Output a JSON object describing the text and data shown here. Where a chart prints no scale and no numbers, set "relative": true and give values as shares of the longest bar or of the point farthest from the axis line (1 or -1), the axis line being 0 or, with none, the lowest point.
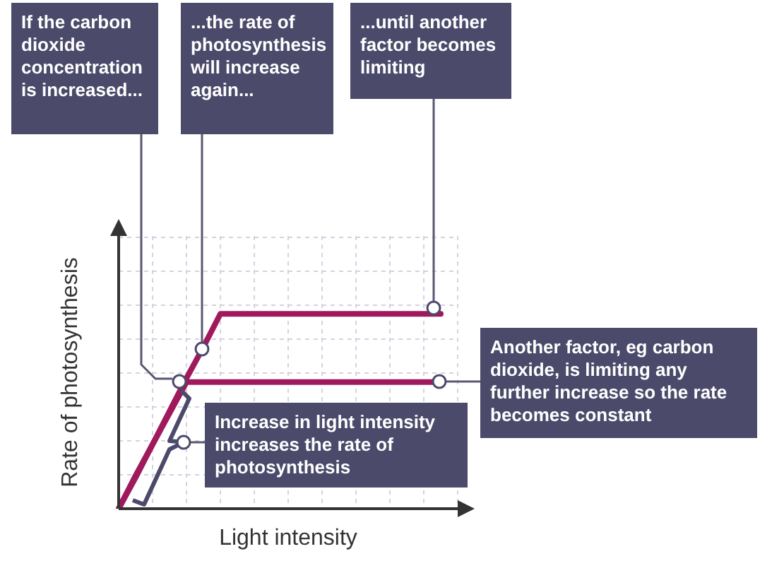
{
  "chart_data": {
    "type": "line",
    "relative": true,
    "xlabel": "Light intensity",
    "ylabel": "Rate of photosynthesis",
    "grid": true,
    "categories": [
      null,
      null,
      null,
      null,
      null,
      null,
      null,
      null,
      null,
      null,
      null,
      null,
      null,
      null,
      null,
      null,
      null,
      null,
      null,
      null,
      null
    ],
    "series": [
      {
        "color": "#a0195c",
        "values": [
          0,
          0.16,
          0.33,
          0.49,
          0.65,
          0.65,
          0.65,
          0.65,
          0.65,
          0.65,
          0.65,
          0.65,
          0.65,
          0.65,
          0.65,
          0.65,
          0.65,
          0.65,
          0.65,
          0.65,
          null
        ]
      },
      {
        "color": "#a0195c",
        "values": [
          0,
          0.17,
          0.33,
          0.5,
          0.67,
          0.83,
          1,
          1,
          1,
          1,
          1,
          1,
          1,
          1,
          1,
          1,
          1,
          1,
          1,
          1,
          null
        ]
      }
    ],
    "annotations": [
      "If the carbon dioxide concentration is increased...",
      "...the rate of photosynthesis will increase again...",
      "...until another factor becomes limiting",
      "Another factor, eg carbon dioxide, is limiting any further increase so the rate becomes constant",
      "Increase in light intensity increases the rate of photosynthesis"
    ]
  }
}
